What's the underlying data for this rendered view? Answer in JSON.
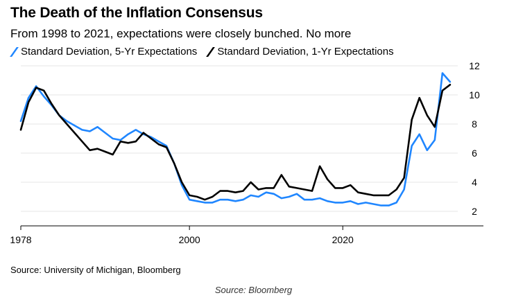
{
  "header": {
    "title": "The Death of the Inflation Consensus",
    "subtitle": "From 1998 to 2021, expectations were closely bunched. No more"
  },
  "footer": {
    "source": "Source: University of Michigan, Bloomberg",
    "caption": "Source: Bloomberg"
  },
  "colors": {
    "five_year": "#1f86ff",
    "one_year": "#000000",
    "grid": "#e6e6e6",
    "axis": "#000000"
  },
  "chart_data": {
    "type": "line",
    "title": "The Death of the Inflation Consensus",
    "subtitle": "From 1998 to 2021, expectations were closely bunched. No more",
    "xlabel": "",
    "ylabel": "",
    "x_ticks": [
      "1978",
      "2000",
      "2020"
    ],
    "y_ticks": [
      2,
      4,
      6,
      8,
      10,
      12
    ],
    "y_axis_side": "right",
    "grid": true,
    "legend_position": "top-left",
    "xlim": [
      1978,
      2035
    ],
    "ylim": [
      1,
      12
    ],
    "x": [
      1978,
      1979,
      1980,
      1981,
      1982,
      1983,
      1984,
      1985,
      1986,
      1987,
      1988,
      1989,
      1990,
      1991,
      1992,
      1993,
      1994,
      1995,
      1996,
      1997,
      1998,
      1999,
      2000,
      2001,
      2002,
      2003,
      2004,
      2005,
      2006,
      2007,
      2008,
      2009,
      2010,
      2011,
      2012,
      2013,
      2014,
      2015,
      2016,
      2017,
      2018,
      2019,
      2020,
      2021,
      2022,
      2023,
      2024,
      2025,
      2026,
      2027,
      2028,
      2029,
      2030,
      2031,
      2032,
      2033,
      2034
    ],
    "series": [
      {
        "name": "Standard Deviation, 5-Yr Expectations",
        "color": "#1f86ff",
        "values": [
          8.2,
          9.8,
          10.6,
          9.9,
          9.3,
          8.6,
          8.2,
          7.9,
          7.6,
          7.5,
          7.8,
          7.4,
          7.0,
          6.9,
          7.3,
          7.6,
          7.3,
          7.1,
          6.8,
          6.5,
          5.3,
          3.8,
          2.8,
          2.7,
          2.6,
          2.6,
          2.8,
          2.8,
          2.7,
          2.8,
          3.1,
          3.0,
          3.3,
          3.2,
          2.9,
          3.0,
          3.2,
          2.8,
          2.8,
          2.9,
          2.7,
          2.6,
          2.6,
          2.7,
          2.5,
          2.6,
          2.5,
          2.4,
          2.4,
          2.6,
          3.5,
          6.5,
          7.3,
          6.2,
          6.9,
          11.5,
          10.9
        ]
      },
      {
        "name": "Standard Deviation, 1-Yr Expectations",
        "color": "#000000",
        "values": [
          7.6,
          9.5,
          10.5,
          10.3,
          9.4,
          8.6,
          8.0,
          7.4,
          6.8,
          6.2,
          6.3,
          6.1,
          5.9,
          6.8,
          6.7,
          6.8,
          7.4,
          7.0,
          6.6,
          6.4,
          5.3,
          4.0,
          3.1,
          3.0,
          2.8,
          3.0,
          3.4,
          3.4,
          3.3,
          3.4,
          4.0,
          3.5,
          3.6,
          3.6,
          4.5,
          3.7,
          3.6,
          3.5,
          3.4,
          5.1,
          4.2,
          3.6,
          3.6,
          3.8,
          3.3,
          3.2,
          3.1,
          3.1,
          3.1,
          3.5,
          4.3,
          8.3,
          9.8,
          8.6,
          7.8,
          10.3,
          10.7
        ]
      }
    ]
  }
}
